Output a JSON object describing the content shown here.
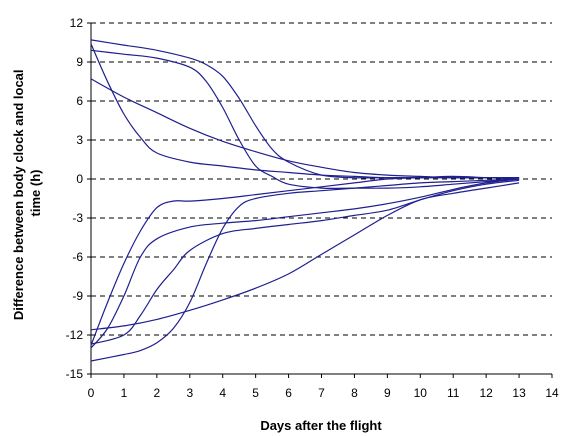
{
  "chart_data": {
    "type": "line",
    "title": "",
    "xlabel": "Days after the flight",
    "ylabel": "Difference between body clock and local time (h)",
    "ylabel_lines": [
      "Difference between body clock and local",
      "time (h)"
    ],
    "xlim": [
      0,
      14
    ],
    "ylim": [
      -15,
      12
    ],
    "x_ticks": [
      0,
      1,
      2,
      3,
      4,
      5,
      6,
      7,
      8,
      9,
      10,
      11,
      12,
      13,
      14
    ],
    "y_ticks": [
      12,
      9,
      6,
      3,
      0,
      -3,
      -6,
      -9,
      -12,
      -15
    ],
    "grid": "horizontal-dashed",
    "legend": "none",
    "line_color": "#1f1f8f",
    "series": [
      {
        "x": [
          0,
          1,
          2,
          3,
          3.5,
          4,
          4.5,
          5,
          5.5,
          6,
          7,
          8,
          9,
          10,
          11,
          12,
          13
        ],
        "y": [
          10.7,
          10.3,
          9.9,
          9.3,
          8.8,
          7.9,
          6.2,
          4.1,
          2.3,
          1.3,
          0.3,
          0.1,
          0.1,
          0.1,
          0.1,
          0.1,
          0.1
        ]
      },
      {
        "x": [
          0,
          1,
          2,
          3,
          3.5,
          4,
          4.5,
          5,
          5.5,
          6,
          7,
          8,
          9,
          10,
          11,
          12,
          13
        ],
        "y": [
          9.9,
          9.6,
          9.3,
          8.6,
          7.5,
          5.5,
          3.0,
          1.0,
          0.2,
          -0.4,
          -0.7,
          -0.7,
          -0.7,
          -0.6,
          -0.4,
          -0.2,
          0
        ]
      },
      {
        "x": [
          0,
          1,
          2,
          3,
          4,
          5,
          6,
          7,
          8,
          9,
          10,
          11,
          12,
          13
        ],
        "y": [
          7.7,
          6.3,
          5.1,
          3.9,
          2.9,
          2.1,
          1.4,
          0.9,
          0.5,
          0.3,
          0.2,
          0.1,
          0.1,
          0.1
        ]
      },
      {
        "x": [
          0,
          0.5,
          1,
          1.5,
          2,
          3,
          4,
          5,
          6,
          7,
          8,
          9,
          10,
          11,
          12,
          13
        ],
        "y": [
          10.4,
          7.5,
          5.0,
          3.2,
          2.0,
          1.3,
          1.0,
          0.7,
          0.5,
          0.3,
          0.2,
          0.1,
          0.1,
          0.1,
          0.1,
          0.1
        ]
      },
      {
        "x": [
          0,
          0.5,
          1,
          1.5,
          2,
          2.5,
          3,
          4,
          5,
          6,
          7,
          8,
          9,
          10,
          11,
          12,
          13
        ],
        "y": [
          -12.8,
          -9.5,
          -6.5,
          -4.0,
          -2.2,
          -1.7,
          -1.7,
          -1.5,
          -1.2,
          -0.9,
          -0.6,
          -0.3,
          0,
          0.1,
          0.2,
          0.1,
          0
        ]
      },
      {
        "x": [
          0,
          0.5,
          1,
          1.5,
          2,
          3,
          4,
          5,
          6,
          7,
          8,
          9,
          10,
          11,
          12,
          13
        ],
        "y": [
          -13.0,
          -11.5,
          -9.0,
          -6.0,
          -4.6,
          -3.7,
          -3.4,
          -3.2,
          -2.9,
          -2.6,
          -2.3,
          -1.9,
          -1.4,
          -0.8,
          -0.3,
          0
        ]
      },
      {
        "x": [
          0,
          1,
          1.5,
          2,
          2.5,
          3,
          4,
          5,
          6,
          7,
          8,
          9,
          10,
          11,
          12,
          13
        ],
        "y": [
          -12.7,
          -12.0,
          -10.5,
          -8.5,
          -7.0,
          -5.5,
          -4.2,
          -3.8,
          -3.5,
          -3.2,
          -2.8,
          -2.4,
          -1.6,
          -0.9,
          -0.4,
          -0.1
        ]
      },
      {
        "x": [
          0,
          1,
          1.5,
          2,
          2.5,
          3,
          3.5,
          4,
          4.5,
          5,
          6,
          7,
          8,
          9,
          10,
          11,
          12,
          13
        ],
        "y": [
          -14.0,
          -13.5,
          -13.2,
          -12.6,
          -11.5,
          -9.5,
          -6.5,
          -3.8,
          -2.1,
          -1.5,
          -1.1,
          -0.9,
          -0.7,
          -0.5,
          -0.3,
          -0.2,
          -0.1,
          0
        ]
      },
      {
        "x": [
          0,
          1,
          2,
          3,
          4,
          5,
          6,
          7,
          8,
          9,
          10,
          11,
          12,
          13
        ],
        "y": [
          -11.6,
          -11.3,
          -10.8,
          -10.1,
          -9.3,
          -8.4,
          -7.3,
          -5.8,
          -4.3,
          -2.8,
          -1.6,
          -1.1,
          -0.7,
          -0.3
        ]
      }
    ]
  }
}
